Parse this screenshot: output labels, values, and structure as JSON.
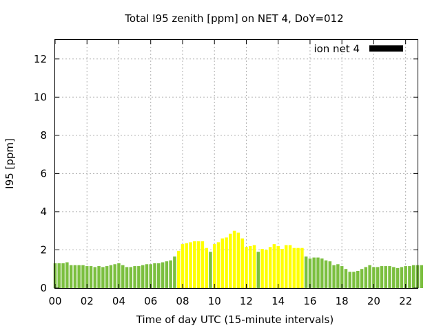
{
  "chart_data": {
    "type": "bar",
    "title": "Total I95 zenith [ppm] on NET 4, DoY=012",
    "xlabel": "Time of day UTC (15-minute intervals)",
    "ylabel": "I95 [ppm]",
    "xlim": [
      0,
      22.75
    ],
    "ylim": [
      0,
      13
    ],
    "xticks": [
      "00",
      "02",
      "04",
      "06",
      "08",
      "10",
      "12",
      "14",
      "16",
      "18",
      "20",
      "22"
    ],
    "yticks": [
      "0",
      "2",
      "4",
      "6",
      "8",
      "10",
      "12"
    ],
    "grid": true,
    "legend": {
      "position": "top-right",
      "label": "ion net 4"
    },
    "colors": {
      "normal": "#7bbf3f",
      "highlight": "#ffff00",
      "legend_swatch": "#000000",
      "grid": "#b0b0b0"
    },
    "bin_hours": 0.25,
    "values": [
      1.3,
      1.3,
      1.3,
      1.35,
      1.2,
      1.2,
      1.2,
      1.2,
      1.15,
      1.15,
      1.1,
      1.15,
      1.1,
      1.15,
      1.2,
      1.25,
      1.3,
      1.2,
      1.1,
      1.1,
      1.15,
      1.15,
      1.2,
      1.25,
      1.25,
      1.3,
      1.3,
      1.35,
      1.4,
      1.45,
      1.65,
      1.95,
      2.3,
      2.35,
      2.4,
      2.45,
      2.45,
      2.45,
      2.1,
      1.9,
      2.3,
      2.4,
      2.6,
      2.65,
      2.85,
      3.0,
      2.9,
      2.6,
      2.15,
      2.2,
      2.25,
      1.9,
      2.05,
      2.0,
      2.15,
      2.3,
      2.2,
      2.05,
      2.25,
      2.25,
      2.1,
      2.1,
      2.1,
      1.65,
      1.55,
      1.6,
      1.6,
      1.55,
      1.45,
      1.4,
      1.2,
      1.25,
      1.15,
      1.0,
      0.85,
      0.85,
      0.9,
      1.0,
      1.1,
      1.2,
      1.1,
      1.1,
      1.15,
      1.15,
      1.15,
      1.1,
      1.05,
      1.1,
      1.15,
      1.15,
      1.2,
      1.2,
      1.2
    ],
    "highlight": [
      0,
      0,
      0,
      0,
      0,
      0,
      0,
      0,
      0,
      0,
      0,
      0,
      0,
      0,
      0,
      0,
      0,
      0,
      0,
      0,
      0,
      0,
      0,
      0,
      0,
      0,
      0,
      0,
      0,
      0,
      0,
      1,
      1,
      1,
      1,
      1,
      1,
      1,
      1,
      0,
      1,
      1,
      1,
      1,
      1,
      1,
      1,
      1,
      1,
      1,
      1,
      0,
      1,
      1,
      1,
      1,
      1,
      1,
      1,
      1,
      1,
      1,
      1,
      0,
      0,
      0,
      0,
      0,
      0,
      0,
      0,
      0,
      0,
      0,
      0,
      0,
      0,
      0,
      0,
      0,
      0,
      0,
      0,
      0,
      0,
      0,
      0,
      0,
      0,
      0,
      0,
      0,
      0
    ]
  }
}
